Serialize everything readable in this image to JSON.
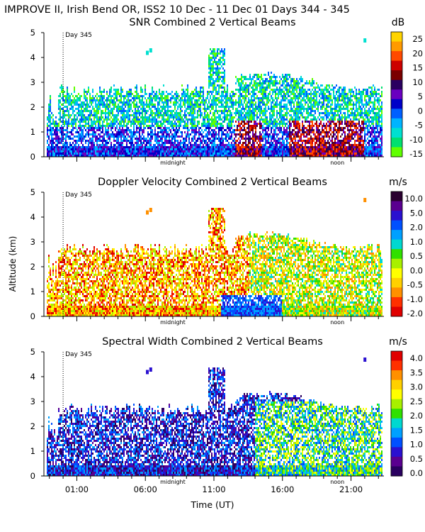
{
  "figure_title": "IMPROVE II,  Irish Bend OR, ISS2  10 Dec - 11 Dec 01 Days 344 - 345",
  "y_axis_label": "Altitude (km)",
  "x_axis_label": "Time (UT)",
  "day_marker": "Day 345",
  "midnight_label": "midnight",
  "noon_label": "noon",
  "colors": {
    "background": "#ffffff",
    "text": "#000000"
  },
  "chart_data": [
    {
      "type": "heatmap",
      "title": "SNR Combined 2 Vertical Beams",
      "unit": "dB",
      "xlabel": "",
      "ylabel": "",
      "ylim": [
        0,
        5
      ],
      "yticks": [
        "0",
        "1",
        "2",
        "3",
        "4",
        "5"
      ],
      "xlim_hours": [
        -1.4,
        23.4
      ],
      "xticks": [],
      "colorbar_labels": [
        "25",
        "20",
        "15",
        "10",
        "5",
        "0",
        "-5",
        "-10",
        "-15"
      ],
      "colorbar_colors": [
        "#ffd400",
        "#ff9a00",
        "#ff4a00",
        "#cc0000",
        "#7a0000",
        "#2a0060",
        "#6a00c0",
        "#0000c8",
        "#0060ff",
        "#00b4ff",
        "#00e0d0",
        "#00e070",
        "#60ff00"
      ]
    },
    {
      "type": "heatmap",
      "title": "Doppler Velocity Combined 2 Vertical Beams",
      "unit": "m/s",
      "xlabel": "",
      "ylabel": "Altitude (km)",
      "ylim": [
        0,
        5
      ],
      "yticks": [
        "0",
        "1",
        "2",
        "3",
        "4",
        "5"
      ],
      "xlim_hours": [
        -1.4,
        23.4
      ],
      "xticks": [],
      "colorbar_labels": [
        "10.0",
        "5.0",
        "2.0",
        "1.0",
        "0.5",
        "0.0",
        "-0.5",
        "-1.0",
        "-2.0"
      ],
      "colorbar_colors": [
        "#2a0030",
        "#5a0090",
        "#2a10d0",
        "#0050ff",
        "#00a0ff",
        "#00d8d0",
        "#30e000",
        "#a8f000",
        "#ffff00",
        "#ffd000",
        "#ff9000",
        "#ff3000",
        "#e00000"
      ]
    },
    {
      "type": "heatmap",
      "title": "Spectral Width Combined 2 Vertical Beams",
      "unit": "m/s",
      "xlabel": "Time (UT)",
      "ylabel": "",
      "ylim": [
        0,
        5
      ],
      "yticks": [
        "0",
        "1",
        "2",
        "3",
        "4",
        "5"
      ],
      "xlim_hours": [
        -1.4,
        23.4
      ],
      "xticks": [
        "01:00",
        "06:00",
        "11:00",
        "16:00",
        "21:00"
      ],
      "colorbar_labels": [
        "4.0",
        "3.5",
        "3.0",
        "2.5",
        "2.0",
        "1.5",
        "1.0",
        "0.5",
        "0.0"
      ],
      "colorbar_colors": [
        "#e00000",
        "#ff3000",
        "#ff9000",
        "#ffd000",
        "#ffff00",
        "#a8f000",
        "#30e000",
        "#00d8d0",
        "#00a0ff",
        "#0050ff",
        "#2a10d0",
        "#5a0090",
        "#2a0060"
      ]
    }
  ]
}
